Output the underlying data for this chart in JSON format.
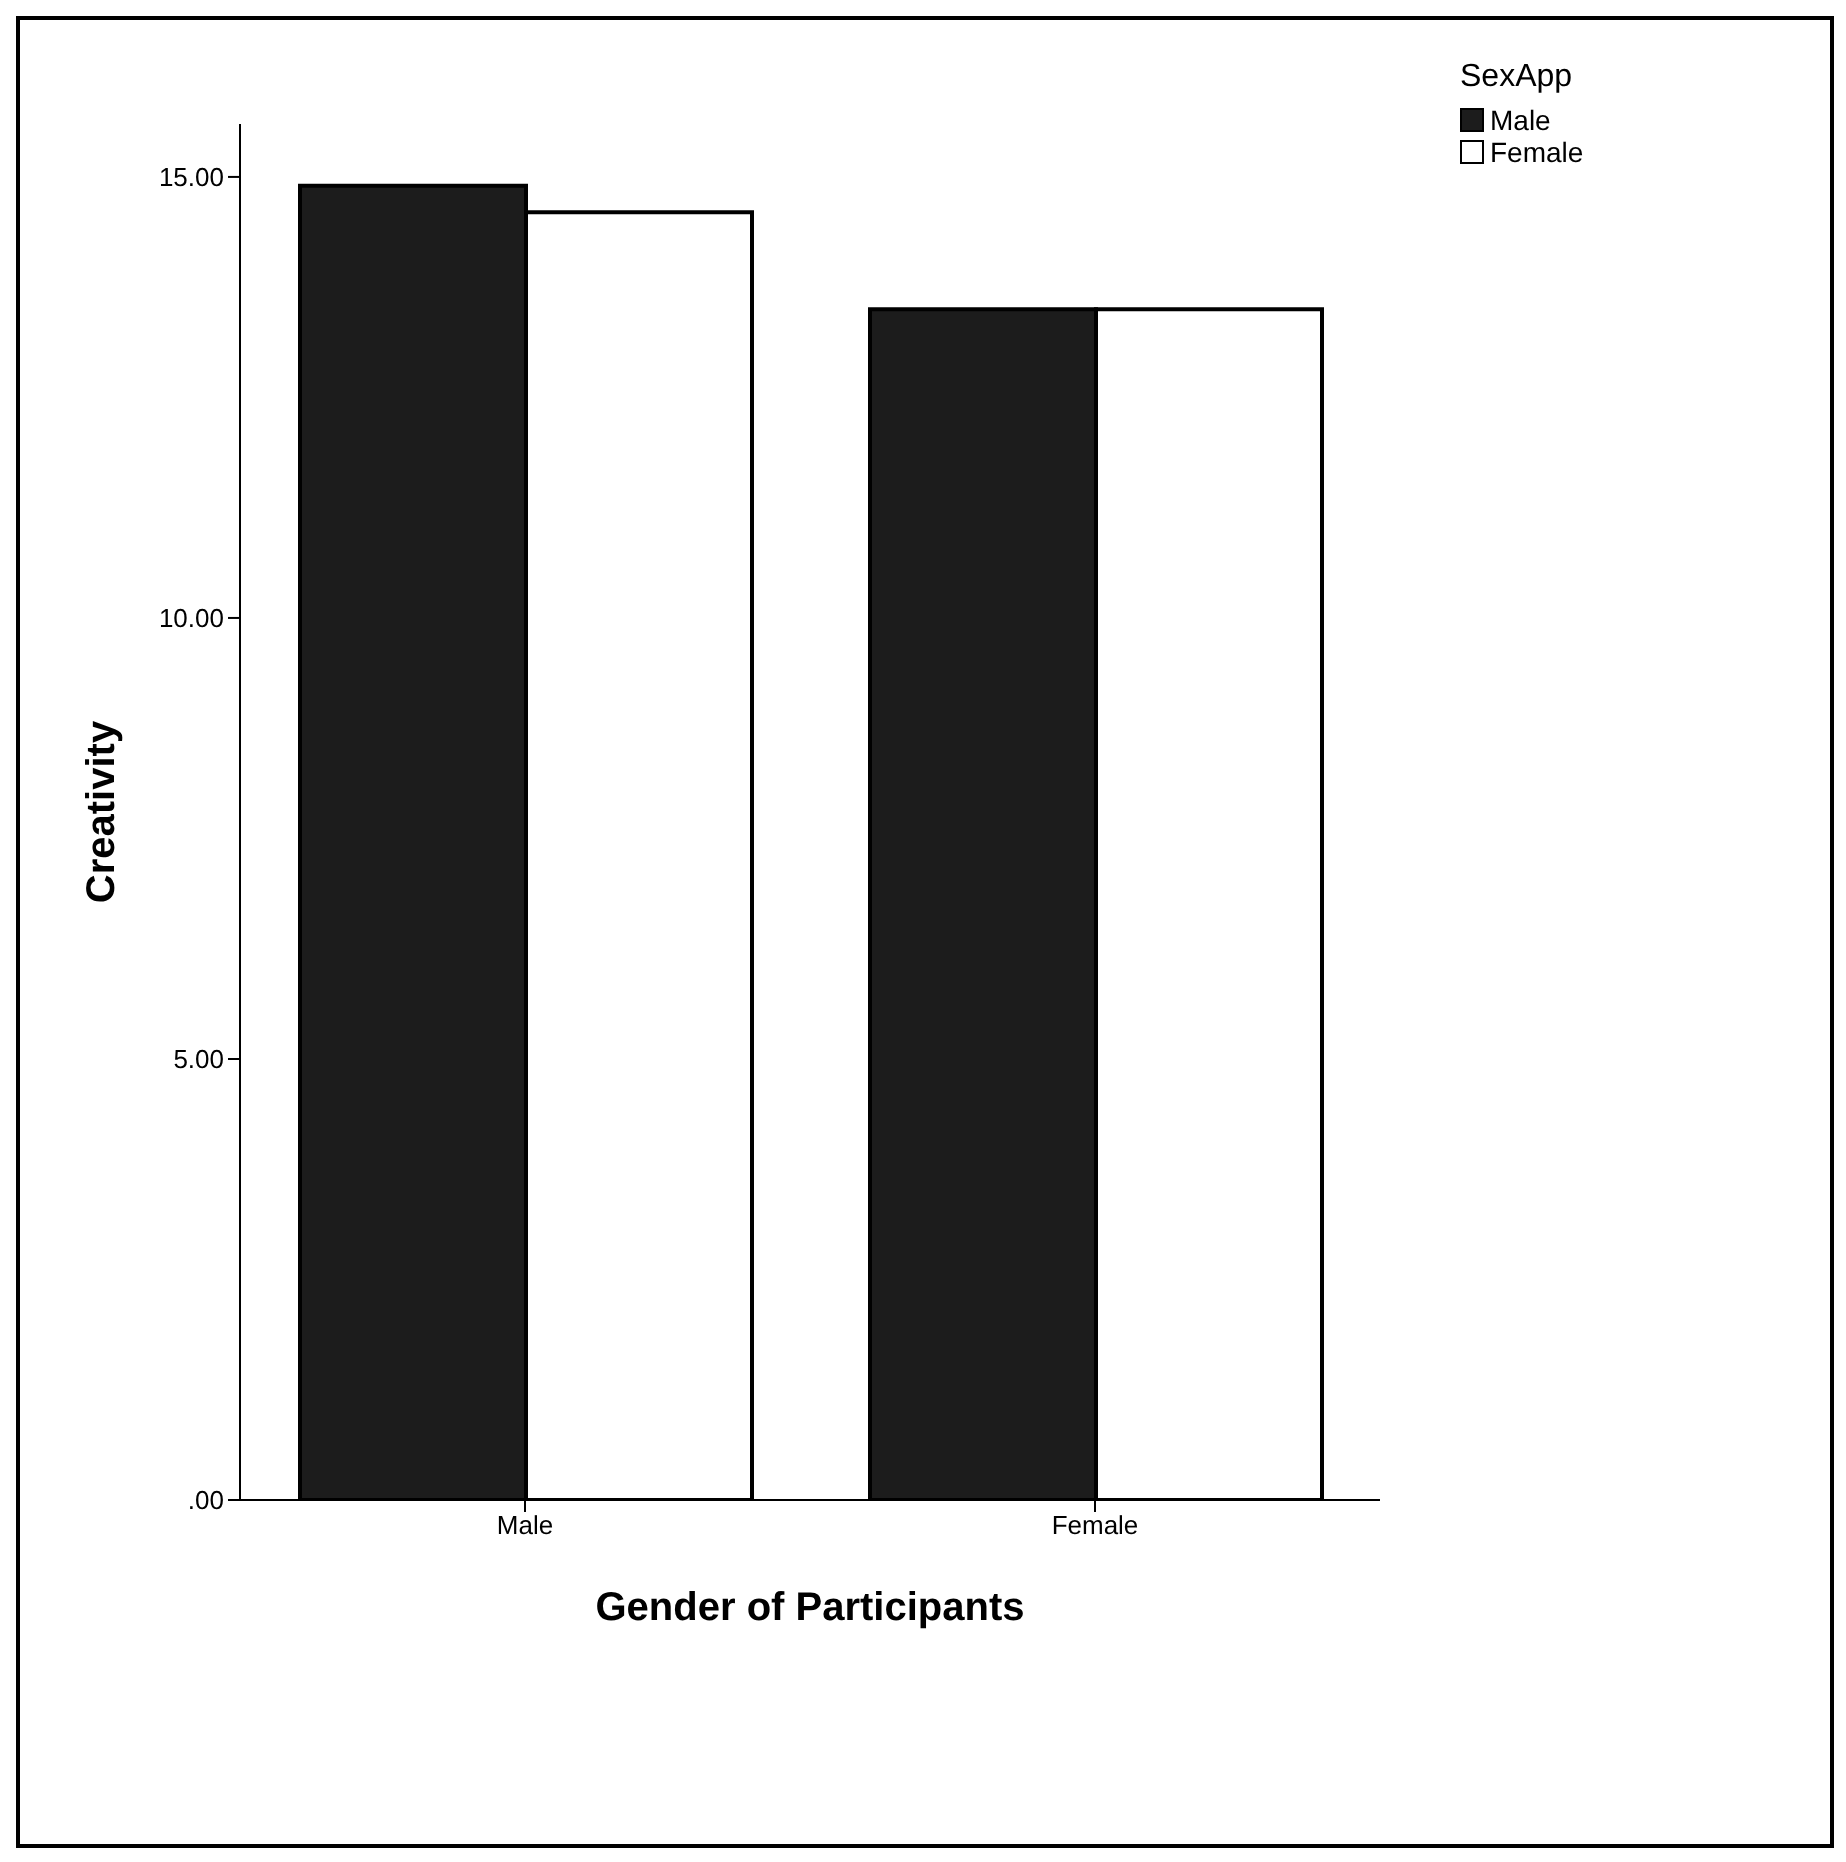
{
  "chart_data": {
    "type": "bar",
    "xlabel": "Gender of Participants",
    "ylabel": "Creativity",
    "legend_title": "SexApp",
    "categories": [
      "Male",
      "Female"
    ],
    "series": [
      {
        "name": "Male",
        "color": "#1c1c1c",
        "values": [
          14.9,
          13.5
        ]
      },
      {
        "name": "Female",
        "color": "#ffffff",
        "values": [
          14.6,
          13.5
        ]
      }
    ],
    "ylim": [
      0,
      15.6
    ],
    "yticks": [
      {
        "value": 0,
        "label": ".00"
      },
      {
        "value": 5,
        "label": "5.00"
      },
      {
        "value": 10,
        "label": "10.00"
      },
      {
        "value": 15,
        "label": "15.00"
      }
    ],
    "grid": false,
    "legend": "top right"
  }
}
